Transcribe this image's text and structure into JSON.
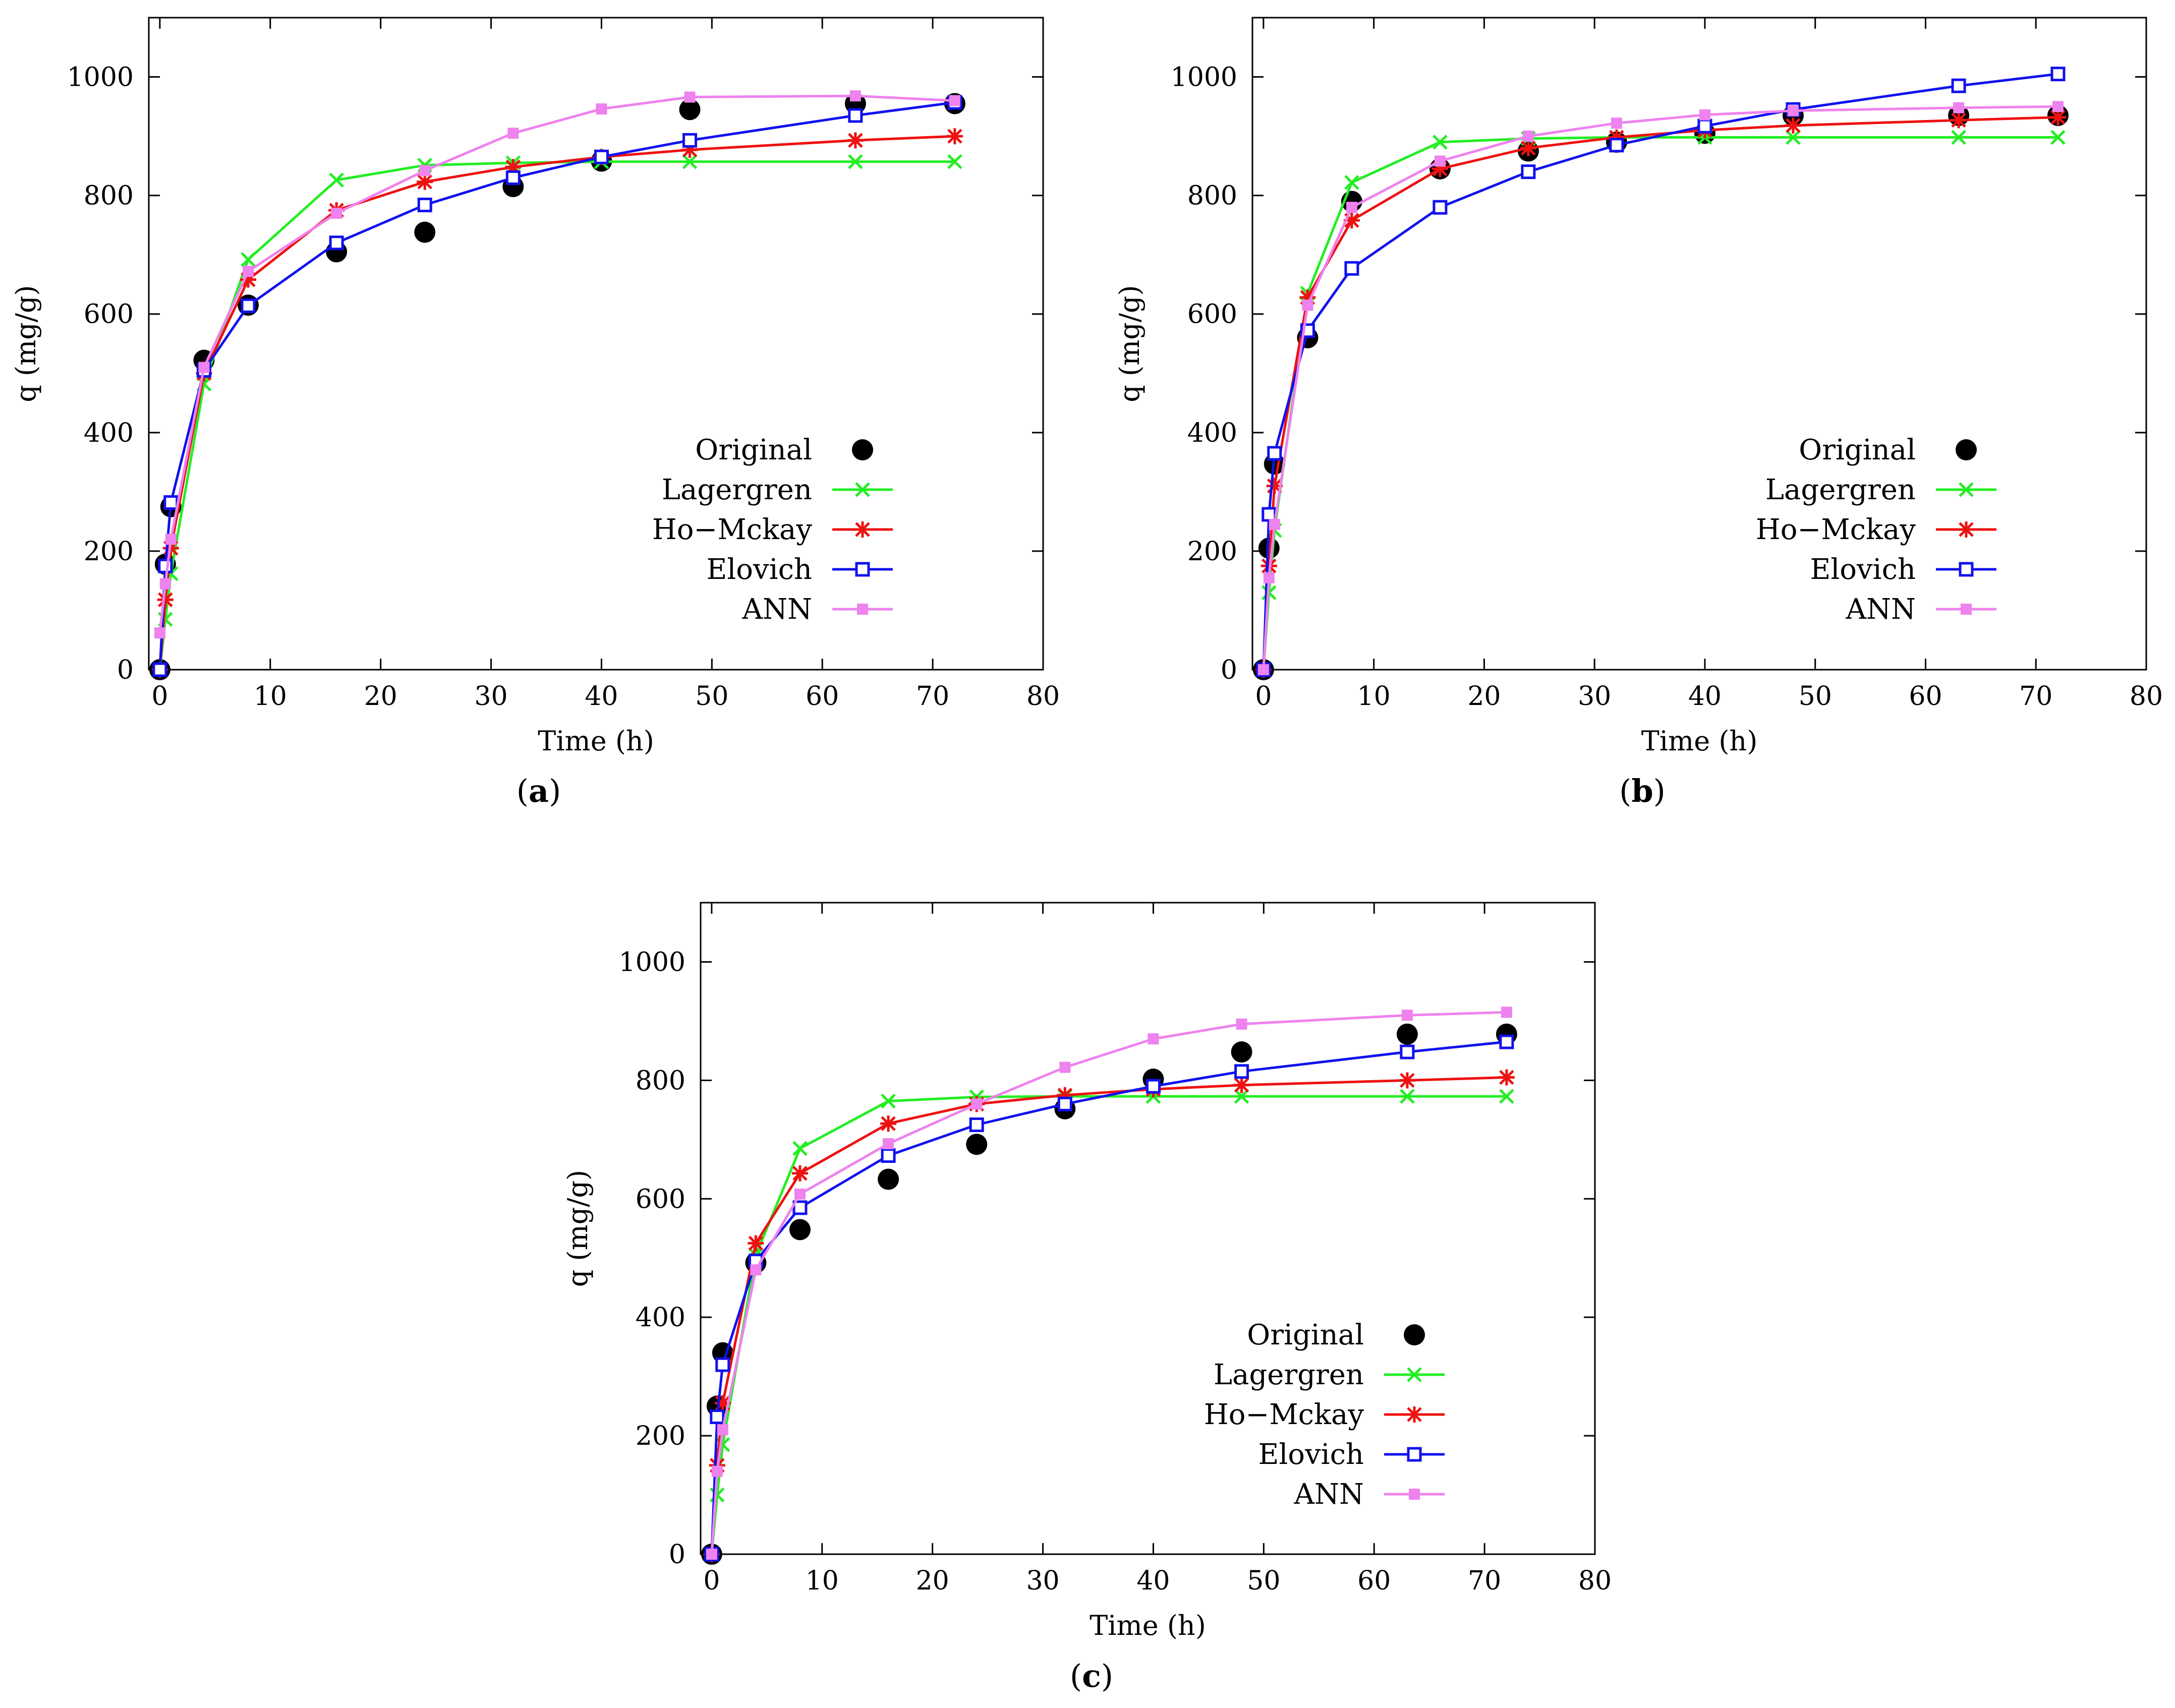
{
  "figure": {
    "legend_position": "bottom-right",
    "colors": {
      "Original": "#000000",
      "Lagergren": "#22ee22",
      "Ho-Mckay": "#ee1111",
      "Elovich": "#1111ee",
      "ANN": "#ee82ee"
    },
    "markers": {
      "Original": "filled-circle",
      "Lagergren": "x-cross",
      "Ho-Mckay": "star",
      "Elovich": "open-square",
      "ANN": "filled-square"
    }
  },
  "chart_data": [
    {
      "id": "a",
      "panel_label": {
        "open": "(",
        "letter": "a",
        "close": ")"
      },
      "type": "line",
      "xlabel": "Time (h)",
      "ylabel": "q (mg/g)",
      "xlim": [
        -1,
        80
      ],
      "ylim": [
        0,
        1100
      ],
      "xticks": [
        0,
        10,
        20,
        30,
        40,
        50,
        60,
        70,
        80
      ],
      "yticks": [
        0,
        200,
        400,
        600,
        800,
        1000
      ],
      "legend": [
        "Original",
        "Lagergren",
        "Ho−Mckay",
        "Elovich",
        "ANN"
      ],
      "series": [
        {
          "name": "Original",
          "style": "points",
          "x": [
            0,
            0.5,
            1,
            4,
            8,
            16,
            24,
            32,
            40,
            48,
            63,
            72
          ],
          "y": [
            0,
            178,
            275,
            522,
            615,
            705,
            738,
            815,
            858,
            945,
            955,
            955
          ]
        },
        {
          "name": "Lagergren",
          "style": "linespoints",
          "x": [
            0,
            0.5,
            1,
            4,
            8,
            16,
            24,
            32,
            40,
            48,
            63,
            72
          ],
          "y": [
            0,
            85,
            162,
            482,
            692,
            826,
            851,
            855,
            857,
            857,
            857,
            857
          ]
        },
        {
          "name": "Ho-Mckay",
          "style": "linespoints",
          "x": [
            0,
            0.5,
            1,
            4,
            8,
            16,
            24,
            32,
            40,
            48,
            63,
            72
          ],
          "y": [
            0,
            118,
            205,
            500,
            658,
            775,
            823,
            848,
            865,
            877,
            893,
            900
          ]
        },
        {
          "name": "Elovich",
          "style": "linespoints",
          "x": [
            0,
            0.5,
            1,
            4,
            8,
            16,
            24,
            32,
            40,
            48,
            63,
            72
          ],
          "y": [
            0,
            175,
            282,
            505,
            614,
            720,
            784,
            830,
            865,
            893,
            935,
            957
          ]
        },
        {
          "name": "ANN",
          "style": "linespoints",
          "x": [
            0,
            0.5,
            1,
            4,
            8,
            16,
            24,
            32,
            40,
            48,
            63,
            72
          ],
          "y": [
            62,
            145,
            220,
            510,
            672,
            770,
            842,
            905,
            946,
            966,
            968,
            960
          ]
        }
      ]
    },
    {
      "id": "b",
      "panel_label": {
        "open": "(",
        "letter": "b",
        "close": ")"
      },
      "type": "line",
      "xlabel": "Time (h)",
      "ylabel": "q (mg/g)",
      "xlim": [
        -1,
        80
      ],
      "ylim": [
        0,
        1100
      ],
      "xticks": [
        0,
        10,
        20,
        30,
        40,
        50,
        60,
        70,
        80
      ],
      "yticks": [
        0,
        200,
        400,
        600,
        800,
        1000
      ],
      "legend": [
        "Original",
        "Lagergren",
        "Ho−Mckay",
        "Elovich",
        "ANN"
      ],
      "series": [
        {
          "name": "Original",
          "style": "points",
          "x": [
            0,
            0.5,
            1,
            4,
            8,
            16,
            24,
            32,
            40,
            48,
            63,
            72
          ],
          "y": [
            0,
            205,
            347,
            560,
            790,
            845,
            875,
            890,
            905,
            935,
            935,
            935
          ]
        },
        {
          "name": "Lagergren",
          "style": "linespoints",
          "x": [
            0,
            0.5,
            1,
            4,
            8,
            16,
            24,
            32,
            40,
            48,
            63,
            72
          ],
          "y": [
            0,
            130,
            235,
            635,
            822,
            890,
            896,
            898,
            898,
            898,
            898,
            898
          ]
        },
        {
          "name": "Ho-Mckay",
          "style": "linespoints",
          "x": [
            0,
            0.5,
            1,
            4,
            8,
            16,
            24,
            32,
            40,
            48,
            63,
            72
          ],
          "y": [
            0,
            175,
            310,
            628,
            758,
            845,
            880,
            898,
            910,
            918,
            927,
            932
          ]
        },
        {
          "name": "Elovich",
          "style": "linespoints",
          "x": [
            0,
            0.5,
            1,
            4,
            8,
            16,
            24,
            32,
            40,
            48,
            63,
            72
          ],
          "y": [
            0,
            262,
            365,
            572,
            677,
            780,
            840,
            885,
            917,
            945,
            985,
            1005
          ]
        },
        {
          "name": "ANN",
          "style": "linespoints",
          "x": [
            0,
            0.5,
            1,
            4,
            8,
            16,
            24,
            32,
            40,
            48,
            63,
            72
          ],
          "y": [
            0,
            155,
            245,
            615,
            780,
            858,
            900,
            922,
            936,
            943,
            948,
            950
          ]
        }
      ]
    },
    {
      "id": "c",
      "panel_label": {
        "open": "(",
        "letter": "c",
        "close": ")"
      },
      "type": "line",
      "xlabel": "Time (h)",
      "ylabel": "q (mg/g)",
      "xlim": [
        -1,
        80
      ],
      "ylim": [
        0,
        1100
      ],
      "xticks": [
        0,
        10,
        20,
        30,
        40,
        50,
        60,
        70,
        80
      ],
      "yticks": [
        0,
        200,
        400,
        600,
        800,
        1000
      ],
      "legend": [
        "Original",
        "Lagergren",
        "Ho−Mckay",
        "Elovich",
        "ANN"
      ],
      "series": [
        {
          "name": "Original",
          "style": "points",
          "x": [
            0,
            0.5,
            1,
            4,
            8,
            16,
            24,
            32,
            40,
            48,
            63,
            72
          ],
          "y": [
            0,
            250,
            340,
            492,
            548,
            633,
            692,
            752,
            802,
            848,
            878,
            878
          ]
        },
        {
          "name": "Lagergren",
          "style": "linespoints",
          "x": [
            0,
            0.5,
            1,
            4,
            8,
            16,
            24,
            32,
            40,
            48,
            63,
            72
          ],
          "y": [
            0,
            100,
            185,
            505,
            685,
            765,
            772,
            773,
            773,
            773,
            773,
            773
          ]
        },
        {
          "name": "Ho-Mckay",
          "style": "linespoints",
          "x": [
            0,
            0.5,
            1,
            4,
            8,
            16,
            24,
            32,
            40,
            48,
            63,
            72
          ],
          "y": [
            0,
            150,
            255,
            525,
            643,
            727,
            760,
            775,
            785,
            792,
            800,
            805
          ]
        },
        {
          "name": "Elovich",
          "style": "linespoints",
          "x": [
            0,
            0.5,
            1,
            4,
            8,
            16,
            24,
            32,
            40,
            48,
            63,
            72
          ],
          "y": [
            0,
            232,
            320,
            495,
            585,
            673,
            725,
            760,
            790,
            815,
            848,
            865
          ]
        },
        {
          "name": "ANN",
          "style": "linespoints",
          "x": [
            0,
            0.5,
            1,
            4,
            8,
            16,
            24,
            32,
            40,
            48,
            63,
            72
          ],
          "y": [
            0,
            140,
            210,
            480,
            608,
            693,
            760,
            822,
            870,
            895,
            910,
            915
          ]
        }
      ]
    }
  ]
}
